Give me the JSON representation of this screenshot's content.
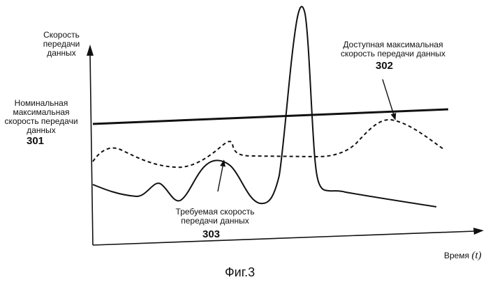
{
  "figure": {
    "y_axis_label": [
      "Скорость",
      "передачи",
      "данных"
    ],
    "x_axis_label": "Время",
    "x_axis_symbol": "(t)",
    "caption": "Фиг.3"
  },
  "labels": {
    "nominal": {
      "lines": [
        "Номинальная",
        "максимальная",
        "скорость передачи",
        "данных"
      ],
      "ref": "301"
    },
    "available": {
      "lines": [
        "Доступная максимальная",
        "скорость передачи данных"
      ],
      "ref": "302"
    },
    "required": {
      "lines": [
        "Требуемая скорость",
        "передачи данных"
      ],
      "ref": "303"
    }
  },
  "colors": {
    "ink": "#111111",
    "background": "#ffffff"
  }
}
